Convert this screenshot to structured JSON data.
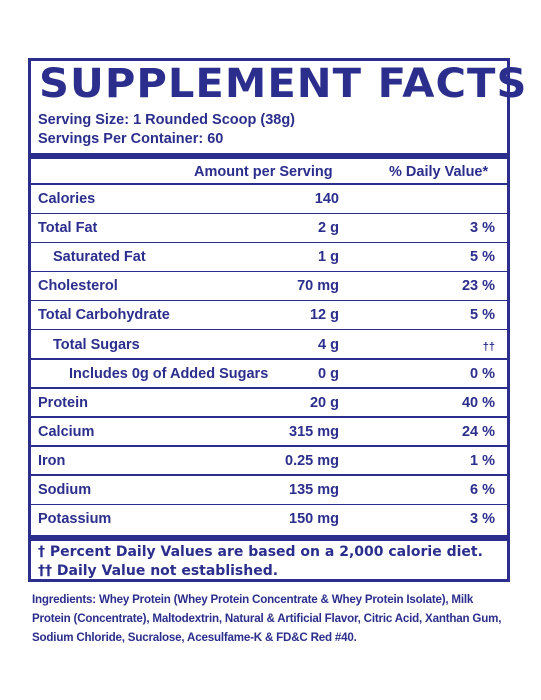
{
  "title": "SUPPLEMENT FACTS",
  "serving_size": "Serving Size: 1 Rounded Scoop (38g)",
  "servings_per_container": "Servings Per Container: 60",
  "columns": {
    "amount": "Amount per Serving",
    "daily_value": "% Daily Value*"
  },
  "rows": [
    {
      "name": "Calories",
      "amount": "140",
      "dv": ""
    },
    {
      "name": "Total Fat",
      "amount": "2 g",
      "dv": "3 %"
    },
    {
      "name": "Saturated Fat",
      "amount": "1 g",
      "dv": "5 %"
    },
    {
      "name": "Cholesterol",
      "amount": "70 mg",
      "dv": "23 %"
    },
    {
      "name": "Total Carbohydrate",
      "amount": "12 g",
      "dv": "5 %"
    },
    {
      "name": "Total Sugars",
      "amount": "4 g",
      "dv": "††"
    },
    {
      "name": "Includes 0g of Added Sugars",
      "amount": "0 g",
      "dv": "0 %"
    },
    {
      "name": "Protein",
      "amount": "20 g",
      "dv": "40 %"
    },
    {
      "name": "Calcium",
      "amount": "315 mg",
      "dv": "24 %"
    },
    {
      "name": "Iron",
      "amount": "0.25 mg",
      "dv": "1 %"
    },
    {
      "name": "Sodium",
      "amount": "135 mg",
      "dv": "6 %"
    },
    {
      "name": "Potassium",
      "amount": "150 mg",
      "dv": "3 %"
    }
  ],
  "footnotes": [
    "† Percent Daily Values are based on a 2,000 calorie diet.",
    "†† Daily Value not established."
  ],
  "ingredients": {
    "label": "Ingredients:",
    "text": " Whey Protein (Whey Protein Concentrate & Whey Protein Isolate), Milk Protein (Concentrate), Maltodextrin, Natural & Artificial Flavor, Citric Acid, Xanthan Gum, Sodium Chloride, Sucralose, Acesulfame-K & FD&C Red #40."
  },
  "colors": {
    "ink": "#2b2e8c",
    "background": "#ffffff"
  }
}
